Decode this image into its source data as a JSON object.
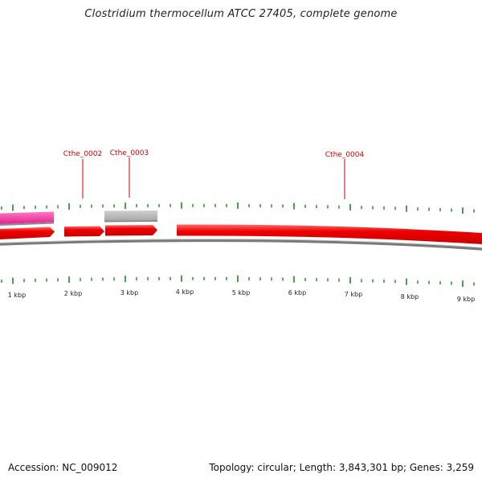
{
  "title": "Clostridium thermocellum ATCC 27405, complete genome",
  "footer": {
    "accession": "Accession: NC_009012",
    "summary": "Topology: circular; Length: 3,843,301 bp; Genes: 3,259"
  },
  "colors": {
    "forward_cds": "#ee0000",
    "reverse_cds": "#ee2a9a",
    "other_feature": "#b8b8b8",
    "backbone": "#7a7a7a",
    "ticks": "#1a8a1a",
    "label": "#cc0000"
  },
  "scale_labels": [
    "1 kbp",
    "2 kbp",
    "3 kbp",
    "4 kbp",
    "5 kbp",
    "6 kbp",
    "7 kbp",
    "8 kbp",
    "9 kbp"
  ],
  "gene_labels": [
    "Cthe_0002",
    "Cthe_0003",
    "Cthe_0004"
  ]
}
